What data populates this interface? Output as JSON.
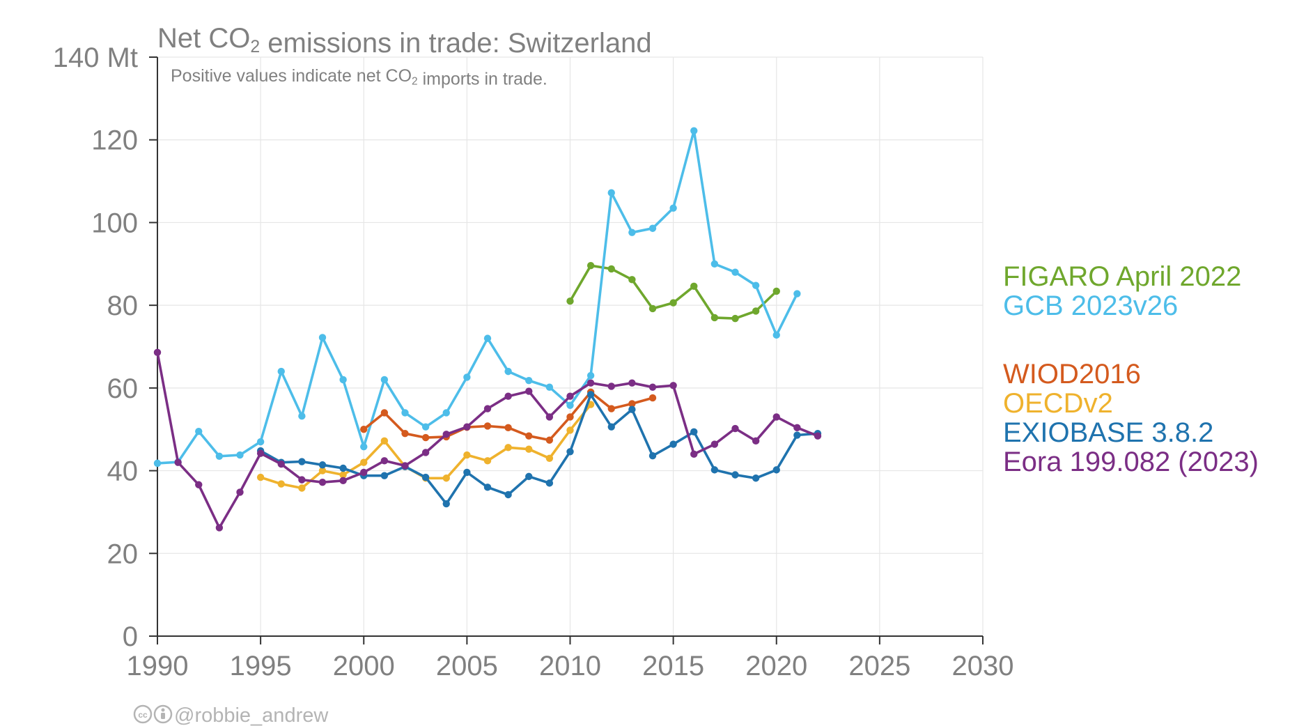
{
  "chart_data": {
    "type": "line",
    "title": "Net CO₂ emissions in trade: Switzerland",
    "subtitle": "Positive values indicate net CO₂ imports in trade.",
    "y_unit": "Mt",
    "xlim": [
      1990,
      2030
    ],
    "ylim": [
      0,
      140
    ],
    "x_ticks": [
      1990,
      1995,
      2000,
      2005,
      2010,
      2015,
      2020,
      2025,
      2030
    ],
    "y_ticks": [
      0,
      20,
      40,
      60,
      80,
      100,
      120,
      140
    ],
    "y_tick_labels": [
      "0",
      "20",
      "40",
      "60",
      "80",
      "100",
      "120",
      "140 Mt"
    ],
    "grid": true,
    "legend_position": "right",
    "series": [
      {
        "name": "GCB 2023v26",
        "color": "#4dbde9",
        "x": [
          1990,
          1991,
          1992,
          1993,
          1994,
          1995,
          1996,
          1997,
          1998,
          1999,
          2000,
          2001,
          2002,
          2003,
          2004,
          2005,
          2006,
          2007,
          2008,
          2009,
          2010,
          2011,
          2012,
          2013,
          2014,
          2015,
          2016,
          2017,
          2018,
          2019,
          2020,
          2021
        ],
        "values": [
          41.8,
          42.1,
          49.5,
          43.5,
          43.8,
          47,
          64,
          53.2,
          72.2,
          62,
          45.8,
          62,
          54,
          50.6,
          54,
          62.6,
          72,
          64,
          61.8,
          60.2,
          55.8,
          63,
          107.2,
          97.6,
          98.6,
          103.5,
          122.2,
          90,
          88,
          84.8,
          72.8,
          82.8
        ]
      },
      {
        "name": "FIGARO April 2022",
        "color": "#6fa72d",
        "x": [
          2010,
          2011,
          2012,
          2013,
          2014,
          2015,
          2016,
          2017,
          2018,
          2019,
          2020
        ],
        "values": [
          81,
          89.6,
          88.8,
          86.2,
          79.2,
          80.6,
          84.6,
          77,
          76.8,
          78.6,
          83.4
        ]
      },
      {
        "name": "WIOD2016",
        "color": "#d45a1e",
        "x": [
          2000,
          2001,
          2002,
          2003,
          2004,
          2005,
          2006,
          2007,
          2008,
          2009,
          2010,
          2011,
          2012,
          2013,
          2014
        ],
        "values": [
          50,
          54,
          49,
          48,
          48.2,
          50.5,
          50.8,
          50.4,
          48.4,
          47.4,
          53,
          59,
          55,
          56.2,
          57.6
        ]
      },
      {
        "name": "OECDv2",
        "color": "#efb22d",
        "x": [
          1995,
          1996,
          1997,
          1998,
          1999,
          2000,
          2001,
          2002,
          2003,
          2004,
          2005,
          2006,
          2007,
          2008,
          2009,
          2010,
          2011
        ],
        "values": [
          38.4,
          36.8,
          35.8,
          40,
          39,
          42,
          47.2,
          41,
          38.2,
          38.2,
          43.8,
          42.4,
          45.6,
          45.2,
          43,
          49.8,
          56
        ]
      },
      {
        "name": "EXIOBASE 3.8.2",
        "color": "#1f73ae",
        "x": [
          1995,
          1996,
          1997,
          1998,
          1999,
          2000,
          2001,
          2002,
          2003,
          2004,
          2005,
          2006,
          2007,
          2008,
          2009,
          2010,
          2011,
          2012,
          2013,
          2014,
          2015,
          2016,
          2017,
          2018,
          2019,
          2020,
          2021,
          2022
        ],
        "values": [
          44.8,
          42,
          42.2,
          41.4,
          40.6,
          38.8,
          38.8,
          41,
          38.4,
          32,
          39.6,
          36,
          34.2,
          38.6,
          37,
          44.6,
          58.4,
          50.6,
          54.8,
          43.6,
          46.4,
          49.4,
          40.2,
          39,
          38.2,
          40.2,
          48.6,
          49
        ]
      },
      {
        "name": "Eora 199.082 (2023)",
        "color": "#7b2e85",
        "x": [
          1990,
          1991,
          1992,
          1993,
          1994,
          1995,
          1996,
          1997,
          1998,
          1999,
          2000,
          2001,
          2002,
          2003,
          2004,
          2005,
          2006,
          2007,
          2008,
          2009,
          2010,
          2011,
          2012,
          2013,
          2014,
          2015,
          2016,
          2017,
          2018,
          2019,
          2020,
          2021,
          2022
        ],
        "values": [
          68.6,
          42,
          36.6,
          26.2,
          34.8,
          44.2,
          41.6,
          37.8,
          37.2,
          37.6,
          39.6,
          42.4,
          41.2,
          44.4,
          48.8,
          50.6,
          55,
          58,
          59.2,
          53,
          58,
          61.2,
          60.4,
          61.2,
          60.2,
          60.6,
          44,
          46.4,
          50.2,
          47.2,
          53,
          50.4,
          48.4
        ]
      }
    ]
  },
  "legend_groups": [
    [
      "FIGARO April 2022",
      "GCB 2023v26"
    ],
    [
      "WIOD2016",
      "OECDv2",
      "EXIOBASE 3.8.2",
      "Eora 199.082 (2023)"
    ]
  ],
  "credit": "@robbie_andrew",
  "credit_icons": [
    "creative-commons-icon",
    "attribution-icon"
  ]
}
